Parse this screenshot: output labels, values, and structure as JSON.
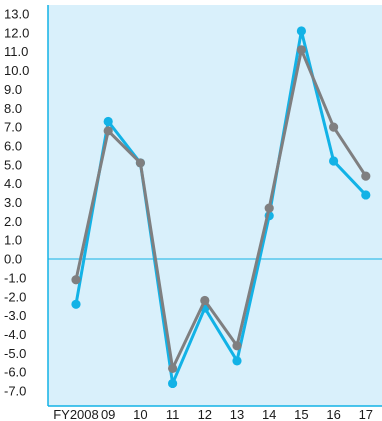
{
  "chart_data": {
    "type": "line",
    "categories": [
      "FY2008",
      "09",
      "10",
      "11",
      "12",
      "13",
      "14",
      "15",
      "16",
      "17"
    ],
    "series": [
      {
        "color": "#12b2e6",
        "values": [
          -2.4,
          7.3,
          5.1,
          -6.6,
          -2.6,
          -5.4,
          2.3,
          12.1,
          5.2,
          3.4
        ]
      },
      {
        "color": "#7f7f80",
        "values": [
          -1.1,
          6.8,
          5.1,
          -5.8,
          -2.2,
          -4.6,
          2.7,
          11.1,
          7.0,
          4.4
        ]
      }
    ],
    "y_ticks": [
      "13.0",
      "12.0",
      "11.0",
      "10.0",
      "9.0",
      "8.0",
      "7.0",
      "6.0",
      "5.0",
      "4.0",
      "3.0",
      "2.0",
      "1.0",
      "0.0",
      "-1.0",
      "-2.0",
      "-3.0",
      "-4.0",
      "-5.0",
      "-6.0",
      "-7.0"
    ],
    "ylim": [
      -7,
      13
    ],
    "plot_background": "#d9f0fb",
    "axis_color": "#12b2e6",
    "zero_line_color": "#12b2e6",
    "grid": false,
    "legend": "none"
  }
}
